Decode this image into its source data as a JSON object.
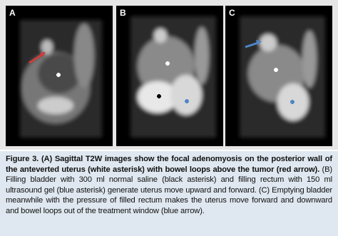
{
  "figure": {
    "panels": [
      {
        "label": "A"
      },
      {
        "label": "B"
      },
      {
        "label": "C"
      }
    ],
    "caption_bold": "Figure 3. (A) Sagittal T2W images show the focal adenomyosis on the posterior wall of the anteverted uterus (white asterisk) with bowel loops above the tumor (red arrow).",
    "caption_text": "(B) Filling bladder with 300 ml normal saline (black asterisk) and filling rectum with 150 ml ultrasound gel (blue asterisk) generate uterus move upward and forward. (C) Emptying bladder meanwhile with the pressure of filled rectum makes the uterus move forward and downward and bowel loops out of the treatment window (blue arrow)."
  }
}
